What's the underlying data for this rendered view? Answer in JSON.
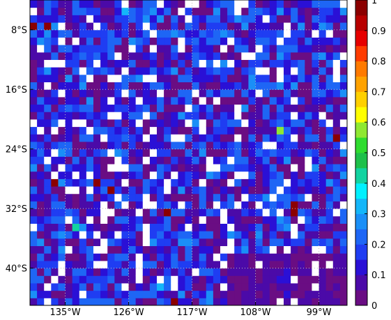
{
  "chart_data": {
    "type": "heatmap",
    "title": "",
    "xlabel": "",
    "ylabel": "",
    "x_ticks": [
      "135°W",
      "126°W",
      "117°W",
      "108°W",
      "99°W"
    ],
    "y_ticks": [
      "8°S",
      "16°S",
      "24°S",
      "32°S",
      "40°S"
    ],
    "x_tick_values": [
      -135,
      -126,
      -117,
      -108,
      -99
    ],
    "y_tick_values": [
      -8,
      -16,
      -24,
      -32,
      -40
    ],
    "xlim": [
      -140,
      -95
    ],
    "ylim": [
      -45,
      -4
    ],
    "grid": true,
    "grid_color": "#bdbdbd",
    "colorbar": {
      "ticks": [
        "1",
        "0.9",
        "0.8",
        "0.7",
        "0.6",
        "0.5",
        "0.4",
        "0.3",
        "0.2",
        "0.1",
        "0"
      ],
      "range": [
        0,
        1
      ],
      "colors": [
        "#6a0d83",
        "#4b0aa8",
        "#2a10d6",
        "#1f3df2",
        "#1e66f5",
        "#1a8ff7",
        "#14b6f9",
        "#00f0ff",
        "#12d3a0",
        "#1ec04a",
        "#2fdc2f",
        "#8fe832",
        "#ffff00",
        "#ffd000",
        "#ffa200",
        "#ff7a00",
        "#ff3c00",
        "#e60000",
        "#b80000",
        "#8b0000"
      ]
    },
    "cell_size_deg": 1,
    "missing_value_color": "#ffffff",
    "typical_value_range": [
      0.0,
      0.25
    ],
    "notable_cells": [
      {
        "lon": -139.5,
        "lat": -7.5,
        "value": 1.0
      },
      {
        "lon": -137.5,
        "lat": -7.5,
        "value": 1.0
      },
      {
        "lon": -126.5,
        "lat": -5.5,
        "value": 0.3
      },
      {
        "lon": -104.5,
        "lat": -21.5,
        "value": 0.58
      },
      {
        "lon": -96.5,
        "lat": -22.5,
        "value": 1.0
      },
      {
        "lon": -136.5,
        "lat": -28.5,
        "value": 1.0
      },
      {
        "lon": -130.5,
        "lat": -28.5,
        "value": 1.0
      },
      {
        "lon": -128.5,
        "lat": -29.5,
        "value": 1.0
      },
      {
        "lon": -120.5,
        "lat": -32.5,
        "value": 1.0
      },
      {
        "lon": -102.5,
        "lat": -31.5,
        "value": 1.0
      },
      {
        "lon": -102.5,
        "lat": -32.5,
        "value": 1.0
      },
      {
        "lon": -133.5,
        "lat": -34.5,
        "value": 0.4
      },
      {
        "lon": -121.5,
        "lat": -42.5,
        "value": 0.3
      },
      {
        "lon": -119.5,
        "lat": -44.5,
        "value": 1.0
      }
    ]
  }
}
